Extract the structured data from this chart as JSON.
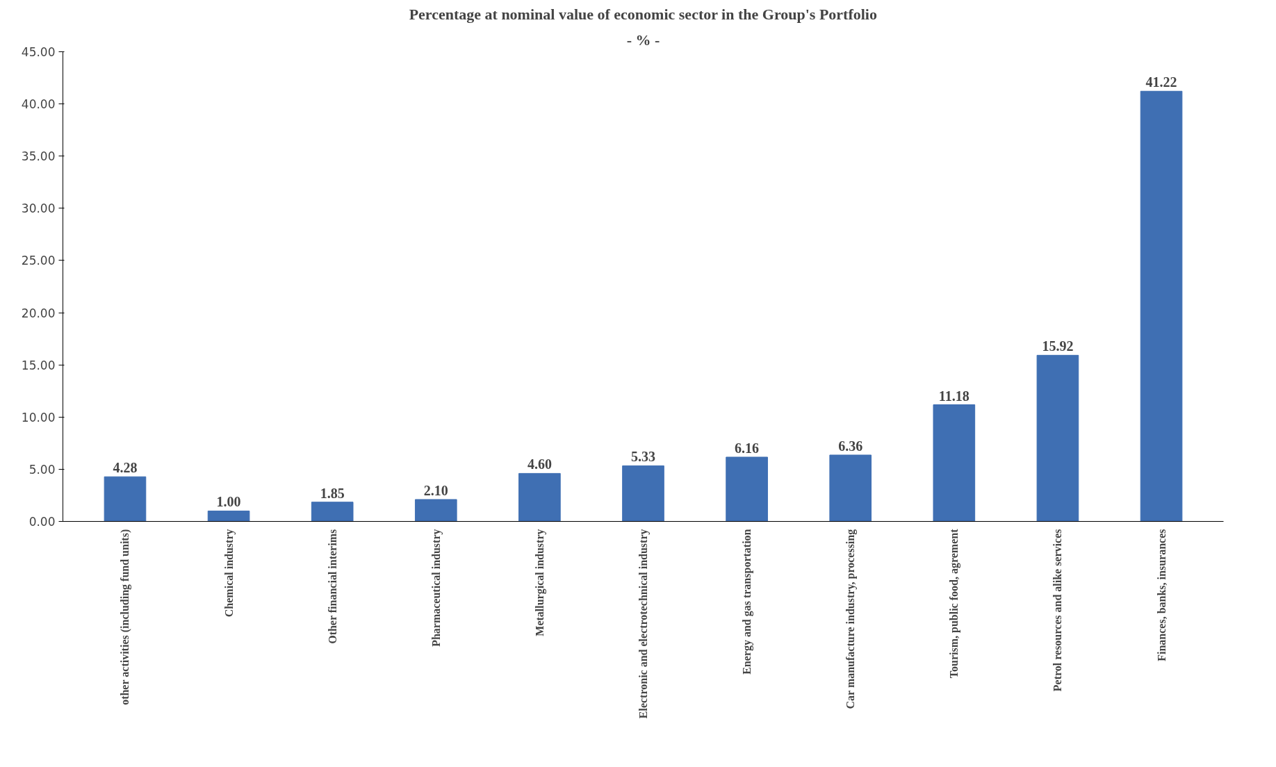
{
  "chart_data": {
    "type": "bar",
    "title": "Percentage at nominal value of economic sector in the Group's Portfolio",
    "subtitle": "- % -",
    "categories": [
      "other activities (including fund units)",
      "Chemical industry",
      "Other financial interims",
      "Pharmaceutical industry",
      "Metallurgical industry",
      "Electronic and electrotechnical industry",
      "Energy and gas transportation",
      "Car manufacture industry, processing",
      "Tourism, public food, agrement",
      "Petrol resources and alike services",
      "Finances, banks, insurances"
    ],
    "values": [
      4.28,
      1.0,
      1.85,
      2.1,
      4.6,
      5.33,
      6.16,
      6.36,
      11.18,
      15.92,
      41.22
    ],
    "value_labels": [
      "4.28",
      "1.00",
      "1.85",
      "2.10",
      "4.60",
      "5.33",
      "6.16",
      "6.36",
      "11.18",
      "15.92",
      "41.22"
    ],
    "color": "#3f6fb3",
    "ylim": [
      0,
      45
    ],
    "yticks": [
      {
        "value": 0,
        "label": "0.00"
      },
      {
        "value": 5,
        "label": "5.00"
      },
      {
        "value": 10,
        "label": "10.00"
      },
      {
        "value": 15,
        "label": "15.00"
      },
      {
        "value": 20,
        "label": "20.00"
      },
      {
        "value": 25,
        "label": "25.00"
      },
      {
        "value": 30,
        "label": "30.00"
      },
      {
        "value": 35,
        "label": "35.00"
      },
      {
        "value": 40,
        "label": "40.00"
      },
      {
        "value": 45,
        "label": "45.00"
      }
    ],
    "grid": false
  }
}
